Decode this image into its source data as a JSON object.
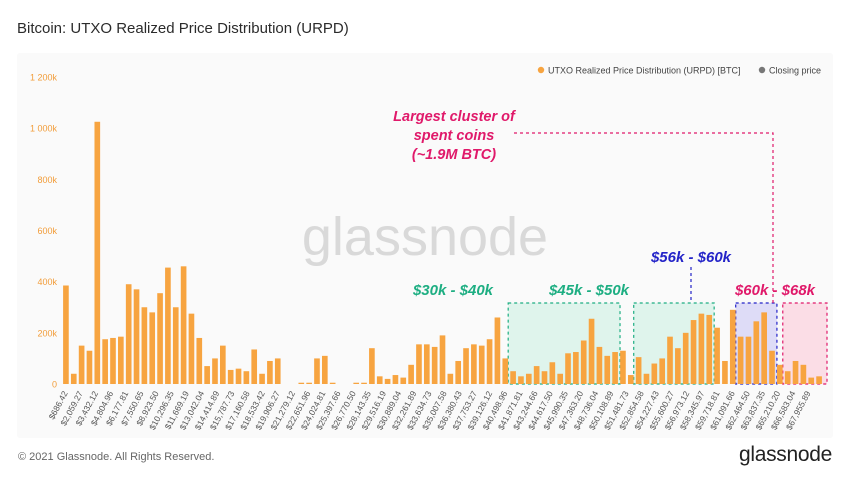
{
  "page": {
    "title": "Bitcoin: UTXO Realized Price Distribution (URPD)",
    "footer": "© 2021 Glassnode. All Rights Reserved.",
    "brand": "glassnode",
    "watermark": "glassnode"
  },
  "chart_data": {
    "type": "bar",
    "title": "Bitcoin: UTXO Realized Price Distribution (URPD)",
    "legend": [
      {
        "label": "UTXO Realized Price Distribution (URPD) [BTC]",
        "color": "#f7a440"
      },
      {
        "label": "Closing price",
        "color": "#777777"
      }
    ],
    "legend_position": "top-right",
    "y_ticks": [
      "0",
      "200k",
      "400k",
      "600k",
      "800k",
      "1 000k",
      "1 200k"
    ],
    "ylim": [
      0,
      1200000
    ],
    "bar_color": "#f7a440",
    "grid": false,
    "tick_labels": [
      "$686.42",
      "$2,059.27",
      "$3,432.12",
      "$4,804.96",
      "$6,177.81",
      "$7,550.65",
      "$8,923.50",
      "$10,296.35",
      "$11,669.19",
      "$13,042.04",
      "$14,414.89",
      "$15,787.73",
      "$17,160.58",
      "$18,533.42",
      "$19,906.27",
      "$21,279.12",
      "$22,651.96",
      "$24,024.81",
      "$25,397.66",
      "$26,770.50",
      "$28,143.35",
      "$29,516.19",
      "$30,889.04",
      "$32,261.89",
      "$33,634.73",
      "$35,007.58",
      "$36,380.43",
      "$37,753.27",
      "$39,126.12",
      "$40,498.96",
      "$41,871.81",
      "$43,244.66",
      "$44,617.50",
      "$45,990.35",
      "$47,363.20",
      "$48,736.04",
      "$50,108.89",
      "$51,481.73",
      "$52,854.58",
      "$54,227.43",
      "$55,600.27",
      "$56,973.12",
      "$58,345.97",
      "$59,718.81",
      "$61,091.66",
      "$62,464.50",
      "$63,837.35",
      "$65,210.20",
      "$66,583.04",
      "$67,955.89"
    ],
    "values": [
      385000,
      40000,
      150000,
      130000,
      1025000,
      175000,
      180000,
      185000,
      390000,
      370000,
      300000,
      280000,
      355000,
      455000,
      300000,
      460000,
      275000,
      180000,
      70000,
      100000,
      150000,
      55000,
      60000,
      50000,
      135000,
      40000,
      90000,
      100000,
      0,
      0,
      5000,
      5000,
      100000,
      110000,
      5000,
      0,
      0,
      5000,
      5000,
      140000,
      30000,
      20000,
      35000,
      25000,
      75000,
      155000,
      155000,
      145000,
      190000,
      40000,
      90000,
      140000,
      155000,
      150000,
      175000,
      260000,
      100000,
      50000,
      30000,
      40000,
      70000,
      50000,
      85000,
      40000,
      120000,
      125000,
      170000,
      255000,
      145000,
      110000,
      125000,
      130000,
      35000,
      105000,
      40000,
      80000,
      100000,
      185000,
      140000,
      200000,
      250000,
      275000,
      270000,
      220000,
      90000,
      290000,
      185000,
      185000,
      245000,
      280000,
      130000,
      75000,
      50000,
      90000,
      75000,
      25000,
      30000
    ],
    "annotations": [
      {
        "label": "Largest cluster of spent coins (~1.9M BTC)",
        "color": "#e0196a"
      },
      {
        "label": "$30k - $40k",
        "color": "#1dae82",
        "fill": "#dff4ec"
      },
      {
        "label": "$45k - $50k",
        "color": "#1dae82",
        "fill": "#dff4ec"
      },
      {
        "label": "$56k - $60k",
        "color": "#2323c8",
        "fill": "#dedcf7"
      },
      {
        "label": "$60k - $68k",
        "color": "#e0196a",
        "fill": "#fbdde6"
      }
    ]
  }
}
